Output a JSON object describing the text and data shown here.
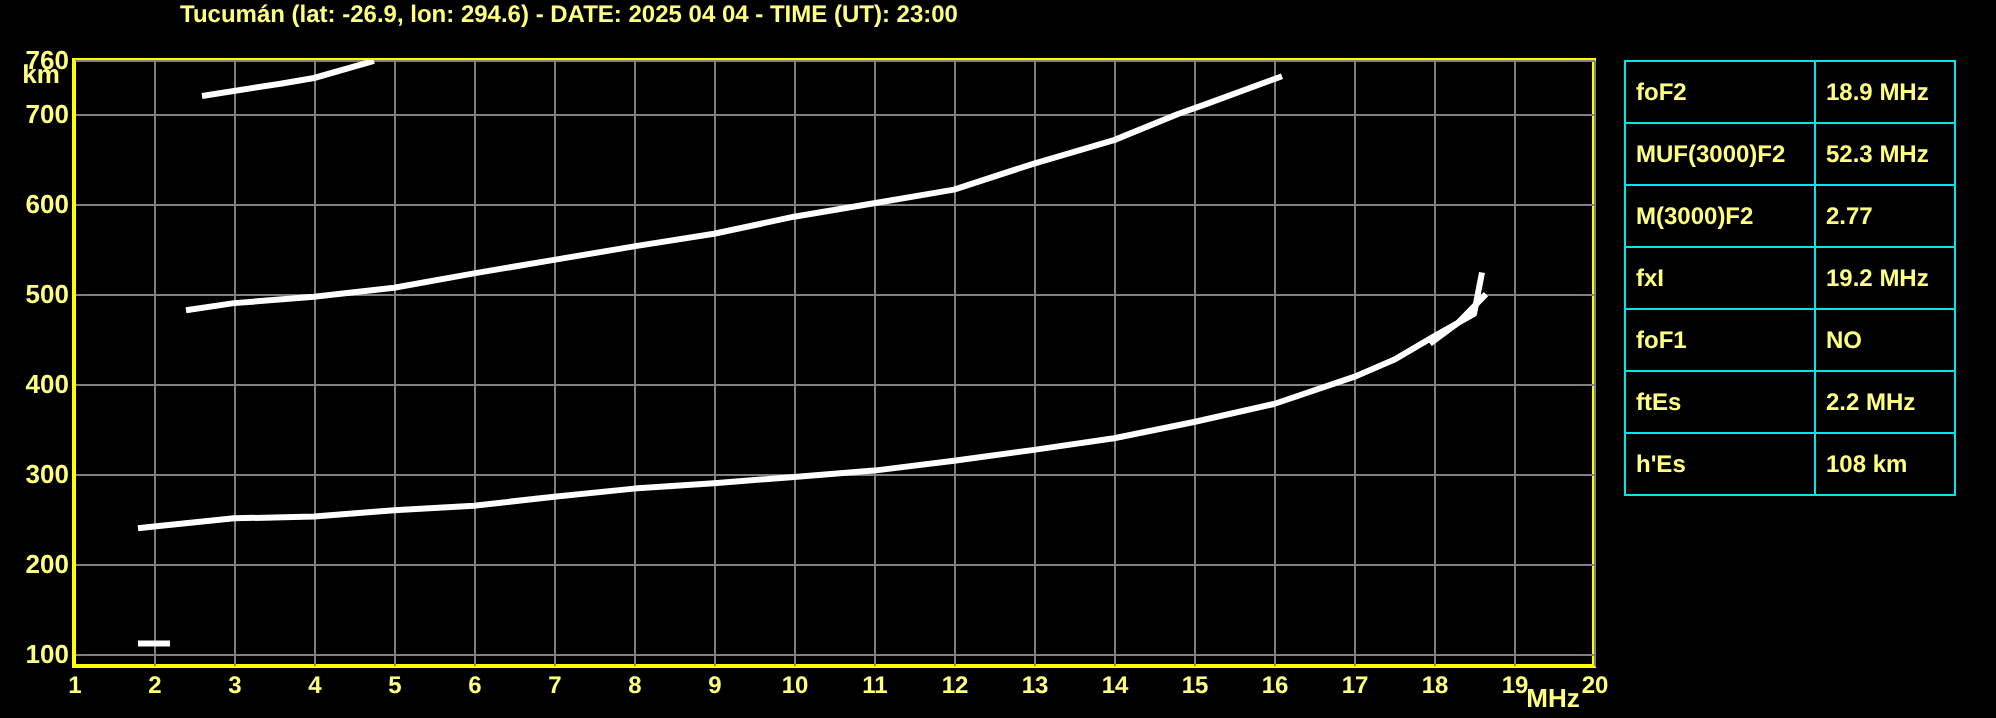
{
  "chart_data": {
    "type": "line",
    "title": "Tucumán (lat: -26.9, lon: 294.6) - DATE: 2025 04 04 - TIME (UT): 23:00",
    "xlabel": "MHz",
    "ylabel": "km",
    "xlim": [
      1,
      20
    ],
    "xticks": [
      1,
      2,
      3,
      4,
      5,
      6,
      7,
      8,
      9,
      10,
      11,
      12,
      13,
      14,
      15,
      16,
      17,
      18,
      19,
      20
    ],
    "ylim": [
      87,
      760
    ],
    "yticks": [
      100,
      200,
      300,
      400,
      500,
      600,
      700,
      760
    ],
    "grid": true,
    "marker": "none",
    "line_style": "solid",
    "series": [
      {
        "color": "#ffffff",
        "x": [
          1.8,
          2,
          3,
          4,
          5,
          6,
          7,
          8,
          9,
          10,
          11,
          12,
          13,
          14,
          15,
          16,
          17,
          17.5,
          18,
          18.5,
          18.6
        ],
        "values": [
          240,
          242,
          251,
          253,
          260,
          265,
          275,
          284,
          290,
          297,
          304,
          315,
          327,
          340,
          358,
          378,
          408,
          427,
          453,
          478,
          524
        ]
      },
      {
        "color": "#ffffff",
        "x": [
          17.95,
          18.3,
          18.65
        ],
        "values": [
          445,
          468,
          500
        ]
      },
      {
        "color": "#ffffff",
        "x": [
          2.4,
          3,
          4,
          5,
          6,
          7,
          8,
          9,
          10,
          11,
          12,
          13,
          14,
          14.8,
          15.15,
          16.1
        ],
        "values": [
          482,
          490,
          497,
          507,
          523,
          538,
          553,
          567,
          586,
          601,
          616,
          645,
          671,
          700,
          711,
          742
        ]
      },
      {
        "color": "#ffffff",
        "x": [
          2.6,
          3.6,
          4,
          4.75
        ],
        "values": [
          720,
          734,
          740,
          759
        ]
      },
      {
        "color": "#ffffff",
        "x": [
          1.8,
          2.2
        ],
        "values": [
          112,
          112
        ]
      }
    ],
    "annotations": [
      "foF2",
      "18.9 MHz",
      "MUF(3000)F2",
      "52.3 MHz",
      "M(3000)F2",
      "2.77",
      "fxI",
      "19.2 MHz",
      "foF1",
      "NO",
      "ftEs",
      "2.2 MHz",
      "h'Es",
      "108 km"
    ]
  }
}
